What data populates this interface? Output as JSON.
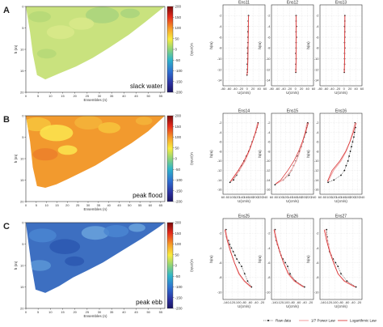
{
  "colors": {
    "raw": "#111111",
    "power": "#f2a7a7",
    "log": "#d62728"
  },
  "colorbar": {
    "ticks": [
      200,
      150,
      100,
      50,
      0,
      -50,
      -100,
      -150,
      -200
    ],
    "label": "U(cm/s)"
  },
  "contours": [
    {
      "letter": "A",
      "note": "slack water",
      "xlabel": "Ensembles (n)",
      "ylabel": "h (m)",
      "xticks": [
        "0",
        "5",
        "10",
        "15",
        "20",
        "25",
        "30",
        "35",
        "40",
        "45",
        "50",
        "55"
      ],
      "yticks": [
        "0",
        "5",
        "10",
        "15",
        "20"
      ],
      "colors": [
        "#c9e27e",
        "#b5d877",
        "#d9e98a",
        "#a9d47c"
      ]
    },
    {
      "letter": "B",
      "note": "peak flood",
      "xlabel": "Ensembles (n)",
      "ylabel": "h (m)",
      "xticks": [
        "0",
        "5",
        "10",
        "15",
        "20",
        "25",
        "30",
        "35",
        "40",
        "45",
        "50",
        "55",
        "60",
        "65"
      ],
      "yticks": [
        "0",
        "5",
        "10",
        "15",
        "20"
      ],
      "colors": [
        "#f29a2e",
        "#f7c43c",
        "#fbe64f",
        "#f4b43a",
        "#ec7f2a"
      ]
    },
    {
      "letter": "C",
      "note": "peak ebb",
      "xlabel": "Ensembles (n)",
      "ylabel": "h (m)",
      "xticks": [
        "0",
        "5",
        "10",
        "15",
        "20",
        "25",
        "30",
        "35",
        "40",
        "45",
        "50",
        "55"
      ],
      "yticks": [
        "0",
        "5",
        "10",
        "15",
        "20"
      ],
      "colors": [
        "#3d6fc1",
        "#4a86d1",
        "#2b58b0",
        "#6aa3dc",
        "#5a96d6"
      ]
    }
  ],
  "legend": {
    "raw": "Raw data",
    "power": "1/7 Power Law",
    "log": "Logarithmic Law"
  },
  "chart_data": [
    {
      "type": "line",
      "title": "Ens11",
      "xlabel": "U(cm/s)",
      "ylabel": "h(m)",
      "xticks": [
        "-80",
        "-60",
        "-40",
        "-20",
        "0",
        "20",
        "40",
        "60"
      ],
      "yticks": [
        "-2",
        "-4",
        "-6",
        "-8",
        "-10",
        "-12",
        "-14"
      ],
      "xlim": [
        -80,
        60
      ],
      "ylim": [
        -15,
        0
      ],
      "series": [
        {
          "role": "raw",
          "x": [
            5,
            4,
            4,
            3,
            3,
            3,
            2,
            2,
            2,
            1,
            1,
            1,
            0
          ],
          "y": [
            -2,
            -3,
            -4,
            -5,
            -6,
            -7,
            -8,
            -9,
            -10,
            -11,
            -12,
            -12.5,
            -13
          ]
        },
        {
          "role": "power",
          "x": [
            5,
            4.5,
            4,
            3.5,
            3,
            2,
            0
          ],
          "y": [
            -2,
            -4,
            -6,
            -8,
            -10,
            -12,
            -13
          ]
        },
        {
          "role": "log",
          "x": [
            5,
            4.5,
            4,
            3.5,
            3,
            2,
            0
          ],
          "y": [
            -2,
            -4,
            -6,
            -8,
            -10,
            -12,
            -13
          ]
        }
      ]
    },
    {
      "type": "line",
      "title": "Ens12",
      "xlabel": "U(cm/s)",
      "ylabel": "h(m)",
      "xticks": [
        "-80",
        "-60",
        "-40",
        "-20",
        "0",
        "20",
        "40",
        "60"
      ],
      "yticks": [
        "-2",
        "-4",
        "-6",
        "-8",
        "-10",
        "-12",
        "-14"
      ],
      "xlim": [
        -80,
        60
      ],
      "ylim": [
        -15,
        0
      ],
      "series": [
        {
          "role": "raw",
          "x": [
            2,
            2,
            3,
            2,
            3,
            2,
            2,
            1,
            2,
            1,
            1,
            1
          ],
          "y": [
            -2,
            -3,
            -4,
            -5,
            -6,
            -7,
            -8,
            -9,
            -10,
            -11,
            -12,
            -12.5
          ]
        },
        {
          "role": "power",
          "x": [
            2,
            2,
            2,
            2,
            2,
            1
          ],
          "y": [
            -2,
            -4,
            -6,
            -8,
            -10,
            -12.5
          ]
        },
        {
          "role": "log",
          "x": [
            2,
            2,
            2,
            2,
            2,
            1
          ],
          "y": [
            -2,
            -4,
            -6,
            -8,
            -10,
            -12.5
          ]
        }
      ]
    },
    {
      "type": "line",
      "title": "Ens13",
      "xlabel": "U(cm/s)",
      "ylabel": "h(m)",
      "xticks": [
        "-80",
        "-60",
        "-40",
        "-20",
        "0",
        "20",
        "40",
        "60"
      ],
      "yticks": [
        "-2",
        "-4",
        "-6",
        "-8",
        "-10",
        "-12",
        "-14"
      ],
      "xlim": [
        -80,
        60
      ],
      "ylim": [
        -15,
        0
      ],
      "series": [
        {
          "role": "raw",
          "x": [
            3,
            3,
            2,
            3,
            3,
            2,
            3,
            2,
            2,
            2,
            1,
            1
          ],
          "y": [
            -2,
            -3,
            -4,
            -5,
            -6,
            -7,
            -8,
            -9,
            -10,
            -11,
            -12,
            -12.5
          ]
        },
        {
          "role": "power",
          "x": [
            3,
            3,
            2.5,
            2.5,
            2,
            1
          ],
          "y": [
            -2,
            -4,
            -6,
            -8,
            -10,
            -12.5
          ]
        },
        {
          "role": "log",
          "x": [
            3,
            3,
            2.5,
            2.5,
            2,
            1
          ],
          "y": [
            -2,
            -4,
            -6,
            -8,
            -10,
            -12.5
          ]
        }
      ]
    },
    {
      "type": "line",
      "title": "Ens14",
      "xlabel": "U(cm/s)",
      "ylabel": "h(m)",
      "xticks": [
        "60",
        "80",
        "100",
        "120",
        "140",
        "160",
        "180",
        "200",
        "220",
        "240"
      ],
      "yticks": [
        "-2",
        "-4",
        "-6",
        "-8",
        "-10",
        "-12",
        "-14",
        "-16"
      ],
      "xlim": [
        60,
        240
      ],
      "ylim": [
        -17,
        0
      ],
      "series": [
        {
          "role": "raw",
          "x": [
            210,
            205,
            200,
            192,
            185,
            178,
            170,
            160,
            150,
            140,
            130,
            118,
            105,
            90
          ],
          "y": [
            -2,
            -3,
            -4,
            -5,
            -6,
            -7,
            -8,
            -9,
            -10,
            -11,
            -12,
            -13,
            -14,
            -14.5
          ]
        },
        {
          "role": "power",
          "x": [
            208,
            198,
            186,
            172,
            155,
            130,
            95
          ],
          "y": [
            -2,
            -4,
            -6,
            -8,
            -10,
            -12,
            -14.3
          ]
        },
        {
          "role": "log",
          "x": [
            212,
            200,
            186,
            170,
            150,
            125,
            92
          ],
          "y": [
            -2,
            -4,
            -6,
            -8,
            -10,
            -12,
            -14.3
          ]
        }
      ]
    },
    {
      "type": "line",
      "title": "Ens15",
      "xlabel": "U(cm/s)",
      "ylabel": "h(m)",
      "xticks": [
        "60",
        "80",
        "100",
        "120",
        "140",
        "160",
        "180",
        "200",
        "220",
        "240"
      ],
      "yticks": [
        "-2",
        "-4",
        "-6",
        "-8",
        "-10",
        "-12",
        "-14",
        "-16"
      ],
      "xlim": [
        60,
        240
      ],
      "ylim": [
        -17,
        0
      ],
      "series": [
        {
          "role": "raw",
          "x": [
            215,
            210,
            208,
            200,
            195,
            188,
            180,
            172,
            165,
            155,
            145,
            135,
            110,
            75
          ],
          "y": [
            -2,
            -3,
            -4,
            -5,
            -6,
            -7,
            -8,
            -9,
            -10,
            -11,
            -12,
            -13,
            -14,
            -15
          ]
        },
        {
          "role": "power",
          "x": [
            212,
            204,
            194,
            182,
            166,
            145,
            110,
            80
          ],
          "y": [
            -2,
            -4,
            -6,
            -8,
            -10,
            -12,
            -14,
            -14.8
          ]
        },
        {
          "role": "log",
          "x": [
            218,
            206,
            192,
            176,
            156,
            130,
            100,
            78
          ],
          "y": [
            -2,
            -4,
            -6,
            -8,
            -10,
            -12,
            -14,
            -14.8
          ]
        }
      ]
    },
    {
      "type": "line",
      "title": "Ens16",
      "xlabel": "U(cm/s)",
      "ylabel": "h(m)",
      "xticks": [
        "60",
        "80",
        "100",
        "120",
        "140",
        "160",
        "180",
        "200",
        "220",
        "240"
      ],
      "yticks": [
        "-2",
        "-4",
        "-6",
        "-8",
        "-10",
        "-12",
        "-14",
        "-16"
      ],
      "xlim": [
        60,
        240
      ],
      "ylim": [
        -17,
        0
      ],
      "series": [
        {
          "role": "raw",
          "x": [
            210,
            212,
            208,
            205,
            200,
            195,
            190,
            185,
            180,
            172,
            165,
            150,
            120,
            95
          ],
          "y": [
            -2,
            -3,
            -4,
            -5,
            -6,
            -7,
            -8,
            -9,
            -10,
            -11,
            -12,
            -13,
            -14,
            -14.5
          ]
        },
        {
          "role": "power",
          "x": [
            210,
            200,
            188,
            172,
            150,
            118,
            95
          ],
          "y": [
            -2,
            -4,
            -6,
            -8,
            -10,
            -12,
            -14.3
          ]
        },
        {
          "role": "log",
          "x": [
            215,
            203,
            188,
            170,
            145,
            112,
            92
          ],
          "y": [
            -2,
            -4,
            -6,
            -8,
            -10,
            -12,
            -14.3
          ]
        }
      ]
    },
    {
      "type": "line",
      "title": "Ens25",
      "xlabel": "U(cm/s)",
      "ylabel": "h(m)",
      "xticks": [
        "-140",
        "-120",
        "-100",
        "-80",
        "-60",
        "-40",
        "-20"
      ],
      "yticks": [
        "-2",
        "-4",
        "-6",
        "-8",
        "-10"
      ],
      "xlim": [
        -150,
        -10
      ],
      "ylim": [
        -11,
        0
      ],
      "series": [
        {
          "role": "raw",
          "x": [
            -140,
            -138,
            -132,
            -128,
            -122,
            -116,
            -110,
            -104,
            -96,
            -88,
            -78,
            -68,
            -55
          ],
          "y": [
            -1.5,
            -2.5,
            -3,
            -3.5,
            -4,
            -4.5,
            -5,
            -5.5,
            -6,
            -6.5,
            -7.5,
            -8.5,
            -9.3
          ]
        },
        {
          "role": "power",
          "x": [
            -142,
            -134,
            -124,
            -112,
            -98,
            -80,
            -58
          ],
          "y": [
            -1.5,
            -3,
            -4.5,
            -6,
            -7.5,
            -8.5,
            -9.3
          ]
        },
        {
          "role": "log",
          "x": [
            -144,
            -136,
            -125,
            -112,
            -96,
            -78,
            -56
          ],
          "y": [
            -1.5,
            -3,
            -4.5,
            -6,
            -7.5,
            -8.5,
            -9.3
          ]
        }
      ]
    },
    {
      "type": "line",
      "title": "Ens26",
      "xlabel": "U(cm/s)",
      "ylabel": "h(m)",
      "xticks": [
        "-140",
        "-120",
        "-100",
        "-80",
        "-60",
        "-40",
        "-20"
      ],
      "yticks": [
        "-2",
        "-4",
        "-6",
        "-8",
        "-10"
      ],
      "xlim": [
        -150,
        -10
      ],
      "ylim": [
        -11,
        0
      ],
      "series": [
        {
          "role": "raw",
          "x": [
            -138,
            -136,
            -134,
            -130,
            -126,
            -122,
            -118,
            -112,
            -104,
            -96,
            -88,
            -70,
            -40
          ],
          "y": [
            -1.5,
            -2.5,
            -3,
            -3.5,
            -4,
            -4.5,
            -5,
            -5.5,
            -6,
            -6.5,
            -7.5,
            -8.5,
            -9.3
          ]
        },
        {
          "role": "power",
          "x": [
            -140,
            -132,
            -122,
            -110,
            -95,
            -75,
            -45
          ],
          "y": [
            -1.5,
            -3,
            -4.5,
            -6,
            -7.5,
            -8.5,
            -9.3
          ]
        },
        {
          "role": "log",
          "x": [
            -142,
            -134,
            -123,
            -110,
            -93,
            -72,
            -42
          ],
          "y": [
            -1.5,
            -3,
            -4.5,
            -6,
            -7.5,
            -8.5,
            -9.3
          ]
        }
      ]
    },
    {
      "type": "line",
      "title": "Ens27",
      "xlabel": "U(cm/s)",
      "ylabel": "h(m)",
      "xticks": [
        "-140",
        "-120",
        "-100",
        "-80",
        "-60",
        "-40",
        "-20"
      ],
      "yticks": [
        "-2",
        "-4",
        "-6",
        "-8",
        "-10"
      ],
      "xlim": [
        -150,
        -10
      ],
      "ylim": [
        -11,
        0
      ],
      "series": [
        {
          "role": "raw",
          "x": [
            -128,
            -126,
            -125,
            -122,
            -120,
            -118,
            -112,
            -106,
            -98,
            -90,
            -80,
            -60,
            -30
          ],
          "y": [
            -1.5,
            -2.5,
            -3,
            -3.5,
            -4,
            -4.5,
            -5,
            -5.5,
            -6,
            -6.5,
            -7.5,
            -8.5,
            -9.3
          ]
        },
        {
          "role": "power",
          "x": [
            -132,
            -125,
            -116,
            -104,
            -90,
            -70,
            -35
          ],
          "y": [
            -1.5,
            -3,
            -4.5,
            -6,
            -7.5,
            -8.5,
            -9.3
          ]
        },
        {
          "role": "log",
          "x": [
            -136,
            -128,
            -118,
            -105,
            -90,
            -68,
            -32
          ],
          "y": [
            -1.5,
            -3,
            -4.5,
            -6,
            -7.5,
            -8.5,
            -9.3
          ]
        }
      ]
    }
  ]
}
